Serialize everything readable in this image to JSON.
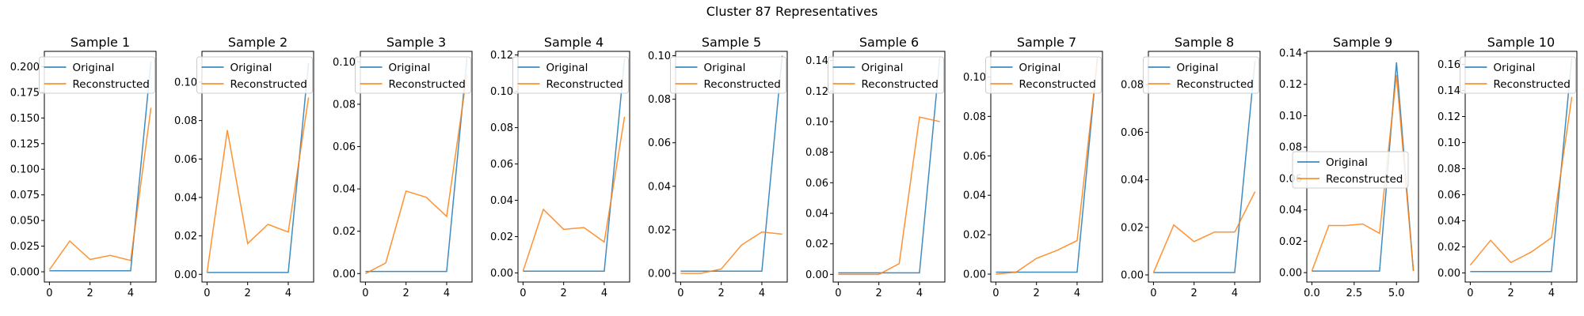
{
  "figure": {
    "title": "Cluster 87 Representatives"
  },
  "colors": {
    "original": "#1f77b4",
    "reconstructed": "#ff7f0e"
  },
  "chart_data": [
    {
      "type": "line",
      "title": "Sample 1",
      "x": [
        0,
        1,
        2,
        3,
        4,
        5
      ],
      "series": [
        {
          "name": "Original",
          "values": [
            0.001,
            0.001,
            0.001,
            0.001,
            0.001,
            0.205
          ]
        },
        {
          "name": "Reconstructed",
          "values": [
            0.002,
            0.03,
            0.012,
            0.016,
            0.011,
            0.16
          ]
        }
      ],
      "ylim": [
        -0.01,
        0.215
      ],
      "xlim": [
        -0.25,
        5.25
      ],
      "yticks": [
        "0.000",
        "0.025",
        "0.050",
        "0.075",
        "0.100",
        "0.125",
        "0.150",
        "0.175",
        "0.200"
      ],
      "xticks": [
        "0",
        "2",
        "4"
      ],
      "legend": "top-center"
    },
    {
      "type": "line",
      "title": "Sample 2",
      "x": [
        0,
        1,
        2,
        3,
        4,
        5
      ],
      "series": [
        {
          "name": "Original",
          "values": [
            0.001,
            0.001,
            0.001,
            0.001,
            0.001,
            0.11
          ]
        },
        {
          "name": "Reconstructed",
          "values": [
            0.001,
            0.075,
            0.016,
            0.026,
            0.022,
            0.092
          ]
        }
      ],
      "ylim": [
        -0.004,
        0.116
      ],
      "xlim": [
        -0.25,
        5.25
      ],
      "yticks": [
        "0.00",
        "0.02",
        "0.04",
        "0.06",
        "0.08",
        "0.10"
      ],
      "xticks": [
        "0",
        "2",
        "4"
      ],
      "legend": "top-center"
    },
    {
      "type": "line",
      "title": "Sample 3",
      "x": [
        0,
        1,
        2,
        3,
        4,
        5
      ],
      "series": [
        {
          "name": "Original",
          "values": [
            0.001,
            0.001,
            0.001,
            0.001,
            0.001,
            0.102
          ]
        },
        {
          "name": "Reconstructed",
          "values": [
            0.0,
            0.005,
            0.039,
            0.036,
            0.027,
            0.094
          ]
        }
      ],
      "ylim": [
        -0.004,
        0.105
      ],
      "xlim": [
        -0.25,
        5.25
      ],
      "yticks": [
        "0.00",
        "0.02",
        "0.04",
        "0.06",
        "0.08",
        "0.10"
      ],
      "xticks": [
        "0",
        "2",
        "4"
      ],
      "legend": "top-center"
    },
    {
      "type": "line",
      "title": "Sample 4",
      "x": [
        0,
        1,
        2,
        3,
        4,
        5
      ],
      "series": [
        {
          "name": "Original",
          "values": [
            0.001,
            0.001,
            0.001,
            0.001,
            0.001,
            0.118
          ]
        },
        {
          "name": "Reconstructed",
          "values": [
            0.001,
            0.035,
            0.024,
            0.025,
            0.017,
            0.086
          ]
        }
      ],
      "ylim": [
        -0.005,
        0.122
      ],
      "xlim": [
        -0.25,
        5.25
      ],
      "yticks": [
        "0.00",
        "0.02",
        "0.04",
        "0.06",
        "0.08",
        "0.10",
        "0.12"
      ],
      "xticks": [
        "0",
        "2",
        "4"
      ],
      "legend": "top-center"
    },
    {
      "type": "line",
      "title": "Sample 5",
      "x": [
        0,
        1,
        2,
        3,
        4,
        5
      ],
      "series": [
        {
          "name": "Original",
          "values": [
            0.001,
            0.001,
            0.001,
            0.001,
            0.001,
            0.1
          ]
        },
        {
          "name": "Reconstructed",
          "values": [
            0.0,
            0.0,
            0.002,
            0.013,
            0.019,
            0.018
          ]
        }
      ],
      "ylim": [
        -0.004,
        0.102
      ],
      "xlim": [
        -0.25,
        5.25
      ],
      "yticks": [
        "0.00",
        "0.02",
        "0.04",
        "0.06",
        "0.08",
        "0.10"
      ],
      "xticks": [
        "0",
        "2",
        "4"
      ],
      "legend": "top-center"
    },
    {
      "type": "line",
      "title": "Sample 6",
      "x": [
        0,
        1,
        2,
        3,
        4,
        5
      ],
      "series": [
        {
          "name": "Original",
          "values": [
            0.001,
            0.001,
            0.001,
            0.001,
            0.001,
            0.142
          ]
        },
        {
          "name": "Reconstructed",
          "values": [
            0.0,
            0.0,
            0.0,
            0.007,
            0.103,
            0.1
          ]
        }
      ],
      "ylim": [
        -0.005,
        0.146
      ],
      "xlim": [
        -0.25,
        5.25
      ],
      "yticks": [
        "0.00",
        "0.02",
        "0.04",
        "0.06",
        "0.08",
        "0.10",
        "0.12",
        "0.14"
      ],
      "xticks": [
        "0",
        "2",
        "4"
      ],
      "legend": "top-center"
    },
    {
      "type": "line",
      "title": "Sample 7",
      "x": [
        0,
        1,
        2,
        3,
        4,
        5
      ],
      "series": [
        {
          "name": "Original",
          "values": [
            0.001,
            0.001,
            0.001,
            0.001,
            0.001,
            0.11
          ]
        },
        {
          "name": "Reconstructed",
          "values": [
            0.0,
            0.001,
            0.008,
            0.012,
            0.017,
            0.108
          ]
        }
      ],
      "ylim": [
        -0.004,
        0.113
      ],
      "xlim": [
        -0.25,
        5.25
      ],
      "yticks": [
        "0.00",
        "0.02",
        "0.04",
        "0.06",
        "0.08",
        "0.10"
      ],
      "xticks": [
        "0",
        "2",
        "4"
      ],
      "legend": "top-center"
    },
    {
      "type": "line",
      "title": "Sample 8",
      "x": [
        0,
        1,
        2,
        3,
        4,
        5
      ],
      "series": [
        {
          "name": "Original",
          "values": [
            0.001,
            0.001,
            0.001,
            0.001,
            0.001,
            0.09
          ]
        },
        {
          "name": "Reconstructed",
          "values": [
            0.001,
            0.021,
            0.014,
            0.018,
            0.018,
            0.035
          ]
        }
      ],
      "ylim": [
        -0.003,
        0.094
      ],
      "xlim": [
        -0.25,
        5.25
      ],
      "yticks": [
        "0.00",
        "0.02",
        "0.04",
        "0.06",
        "0.08"
      ],
      "xticks": [
        "0",
        "2",
        "4"
      ],
      "legend": "top-center"
    },
    {
      "type": "line",
      "title": "Sample 9",
      "x": [
        0,
        1,
        2,
        3,
        4,
        5,
        6
      ],
      "series": [
        {
          "name": "Original",
          "values": [
            0.001,
            0.001,
            0.001,
            0.001,
            0.001,
            0.134,
            0.001
          ]
        },
        {
          "name": "Reconstructed",
          "values": [
            0.001,
            0.03,
            0.03,
            0.031,
            0.025,
            0.126,
            0.001
          ]
        }
      ],
      "ylim": [
        -0.006,
        0.141
      ],
      "xlim": [
        -0.3,
        6.3
      ],
      "yticks": [
        "0.00",
        "0.02",
        "0.04",
        "0.06",
        "0.08",
        "0.10",
        "0.12",
        "0.14"
      ],
      "xticks": [
        "0.0",
        "2.5",
        "5.0"
      ],
      "legend": "center-right"
    },
    {
      "type": "line",
      "title": "Sample 10",
      "x": [
        0,
        1,
        2,
        3,
        4,
        5
      ],
      "series": [
        {
          "name": "Original",
          "values": [
            0.001,
            0.001,
            0.001,
            0.001,
            0.001,
            0.165
          ]
        },
        {
          "name": "Reconstructed",
          "values": [
            0.006,
            0.025,
            0.008,
            0.016,
            0.027,
            0.135
          ]
        }
      ],
      "ylim": [
        -0.007,
        0.17
      ],
      "xlim": [
        -0.25,
        5.25
      ],
      "yticks": [
        "0.00",
        "0.02",
        "0.04",
        "0.06",
        "0.08",
        "0.10",
        "0.12",
        "0.14",
        "0.16"
      ],
      "xticks": [
        "0",
        "2",
        "4"
      ],
      "legend": "top-center"
    }
  ]
}
